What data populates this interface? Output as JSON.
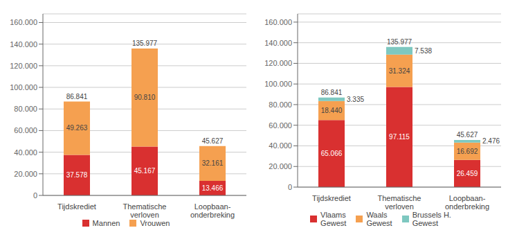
{
  "chart_data": [
    {
      "type": "bar",
      "stacked": true,
      "categories": [
        "Tijdskrediet",
        "Thematische\nverloven",
        "Loopbaan-\nonderbreking"
      ],
      "series": [
        {
          "name": "Mannen",
          "color": "#d93030",
          "values": [
            37578,
            45167,
            13466
          ],
          "value_labels": [
            "37.578",
            "45.167",
            "13.466"
          ]
        },
        {
          "name": "Vrouwen",
          "color": "#f5a050",
          "values": [
            49263,
            90810,
            32161
          ],
          "value_labels": [
            "49.263",
            "90.810",
            "32.161"
          ]
        }
      ],
      "totals": [
        86841,
        135977,
        45627
      ],
      "total_labels": [
        "86.841",
        "135.977",
        "45.627"
      ],
      "ylim": [
        0,
        168000
      ],
      "yticks": [
        0,
        {
          "value": 20000,
          "label": "20.000"
        },
        {
          "value": 40000,
          "label": "40.000"
        },
        {
          "value": 60000,
          "label": "60.000"
        },
        {
          "value": 80000,
          "label": "80.000"
        },
        {
          "value": 100000,
          "label": "100.000"
        },
        {
          "value": 120000,
          "label": "120.000"
        },
        {
          "value": 140000,
          "label": "140.000"
        },
        {
          "value": 160000,
          "label": "160.000"
        }
      ],
      "grid": true,
      "data_labels": true,
      "legend": "bottom"
    },
    {
      "type": "bar",
      "stacked": true,
      "categories": [
        "Tijdskrediet",
        "Thematische\nverloven",
        "Loopbaan-\nonderbreking"
      ],
      "series": [
        {
          "name": "Vlaams\nGewest",
          "color": "#d93030",
          "values": [
            65066,
            97115,
            26459
          ],
          "value_labels": [
            "65.066",
            "97.115",
            "26.459"
          ]
        },
        {
          "name": "Waals\nGewest",
          "color": "#f5a050",
          "values": [
            18440,
            31324,
            16692
          ],
          "value_labels": [
            "18.440",
            "31.324",
            "16.692"
          ]
        },
        {
          "name": "Brussels H.\nGewest",
          "color": "#7ec8c0",
          "values": [
            3335,
            7538,
            2476
          ],
          "value_labels": [
            "3.335",
            "7.538",
            "2.476"
          ]
        }
      ],
      "totals": [
        86841,
        135977,
        45627
      ],
      "total_labels": [
        "86.841",
        "135.977",
        "45.627"
      ],
      "ylim": [
        0,
        168000
      ],
      "yticks": [
        0,
        {
          "value": 20000,
          "label": "20.000"
        },
        {
          "value": 40000,
          "label": "40.000"
        },
        {
          "value": 60000,
          "label": "60.000"
        },
        {
          "value": 80000,
          "label": "80.000"
        },
        {
          "value": 100000,
          "label": "100.000"
        },
        {
          "value": 120000,
          "label": "120.000"
        },
        {
          "value": 140000,
          "label": "140.000"
        },
        {
          "value": 160000,
          "label": "160.000"
        }
      ],
      "grid": true,
      "data_labels": true,
      "legend": "bottom"
    }
  ]
}
